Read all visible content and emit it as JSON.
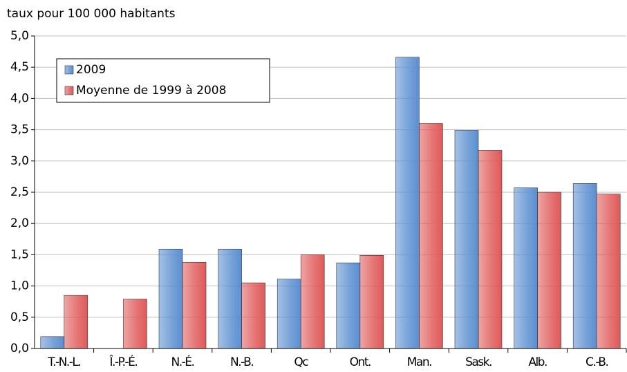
{
  "chart_data": {
    "type": "bar",
    "ylabel": "taux pour 100 000 habitants",
    "categories": [
      "T.-N.-L.",
      "Î.-P.-É.",
      "N.-É.",
      "N.-B.",
      "Qc",
      "Ont.",
      "Man.",
      "Sask.",
      "Alb.",
      "C.-B."
    ],
    "series": [
      {
        "name": "2009",
        "color": "#5b8fd0",
        "values": [
          0.19,
          0,
          1.59,
          1.59,
          1.11,
          1.37,
          4.66,
          3.49,
          2.57,
          2.64
        ]
      },
      {
        "name": "Moyenne de 1999 à 2008",
        "color": "#e05a5a",
        "values": [
          0.85,
          0.79,
          1.38,
          1.05,
          1.5,
          1.49,
          3.6,
          3.17,
          2.5,
          2.47
        ]
      }
    ],
    "ylim": [
      0,
      5
    ],
    "yticks": [
      {
        "value": 0,
        "label": "0,0"
      },
      {
        "value": 0.5,
        "label": "0,5"
      },
      {
        "value": 1,
        "label": "1,0"
      },
      {
        "value": 1.5,
        "label": "1,5"
      },
      {
        "value": 2,
        "label": "2,0"
      },
      {
        "value": 2.5,
        "label": "2,5"
      },
      {
        "value": 3,
        "label": "3,0"
      },
      {
        "value": 3.5,
        "label": "3,5"
      },
      {
        "value": 4,
        "label": "4,0"
      },
      {
        "value": 4.5,
        "label": "4,5"
      },
      {
        "value": 5,
        "label": "5,0"
      }
    ],
    "grid": true,
    "legend": "upper-left"
  }
}
